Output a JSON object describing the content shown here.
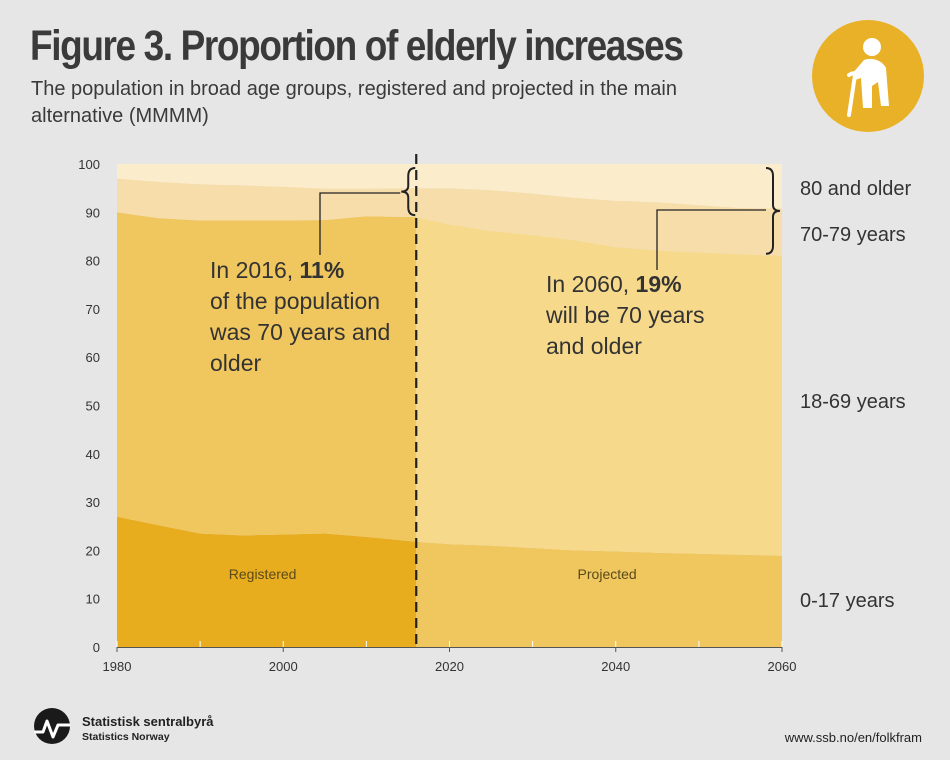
{
  "header": {
    "title": "Figure 3. Proportion of elderly increases",
    "subtitle": "The population in broad age groups, registered and projected in the main alternative (MMMM)"
  },
  "colors": {
    "age_80_plus": "#fbedcb",
    "age_70_79": "#f7ddaa",
    "age_18_69_registered": "#f0c65e",
    "age_0_17_registered": "#e8ad1f",
    "age_18_69_projected": "#f6d98b",
    "age_0_17_projected": "#f0c65e",
    "badge": "#e9b127"
  },
  "icons": {
    "badge": "elderly-person-icon",
    "logo": "ssb-logo-icon"
  },
  "chart_data": {
    "type": "area",
    "stacked": true,
    "x": [
      1980,
      1985,
      1990,
      1995,
      2000,
      2005,
      2010,
      2016,
      2020,
      2025,
      2030,
      2035,
      2040,
      2045,
      2050,
      2055,
      2060
    ],
    "split_year": 2016,
    "series": [
      {
        "name": "0-17 years",
        "values": [
          27,
          25.2,
          23.5,
          23.1,
          23.3,
          23.5,
          22.8,
          21.8,
          21.3,
          21.0,
          20.5,
          20.0,
          19.8,
          19.5,
          19.3,
          19.1,
          18.9
        ]
      },
      {
        "name": "18-69 years",
        "values": [
          63,
          63.6,
          64.8,
          65.2,
          65.0,
          64.9,
          66.4,
          67.2,
          66.2,
          65.1,
          64.8,
          64.2,
          63.0,
          62.6,
          62.4,
          62.2,
          62.1
        ]
      },
      {
        "name": "70-79 years",
        "values": [
          7,
          7.5,
          7.5,
          7.3,
          7.0,
          6.5,
          5.7,
          6.0,
          7.5,
          8.5,
          8.6,
          8.8,
          9.6,
          10.0,
          9.8,
          9.6,
          9.8
        ]
      },
      {
        "name": "80 and older",
        "values": [
          3,
          3.7,
          4.2,
          4.4,
          4.7,
          5.1,
          5.1,
          5.0,
          5.0,
          5.4,
          6.1,
          7.0,
          7.6,
          7.9,
          8.5,
          9.1,
          9.2
        ]
      }
    ],
    "xlim": [
      1980,
      2060
    ],
    "ylim": [
      0,
      100
    ],
    "xticks": [
      1980,
      2000,
      2020,
      2040,
      2060
    ],
    "yticks": [
      0,
      10,
      20,
      30,
      40,
      50,
      60,
      70,
      80,
      90,
      100
    ],
    "xlabel": "",
    "ylabel": "",
    "legend_position": "right",
    "labels": [
      {
        "text": "80 and older",
        "series": "80 and older"
      },
      {
        "text": "70-79 years",
        "series": "70-79 years"
      },
      {
        "text": "18-69 years",
        "series": "18-69 years"
      },
      {
        "text": "0-17 years",
        "series": "0-17 years"
      }
    ],
    "section_labels": {
      "registered": "Registered",
      "projected": "Projected"
    },
    "annotations": [
      {
        "id": "2016",
        "lines": [
          [
            {
              "t": "In 2016, ",
              "b": false
            },
            {
              "t": "11%",
              "b": true
            }
          ],
          [
            {
              "t": "of the population",
              "b": false
            }
          ],
          [
            {
              "t": "was 70 years and",
              "b": false
            }
          ],
          [
            {
              "t": "older",
              "b": false
            }
          ]
        ]
      },
      {
        "id": "2060",
        "lines": [
          [
            {
              "t": "In 2060, ",
              "b": false
            },
            {
              "t": "19%",
              "b": true
            }
          ],
          [
            {
              "t": "will be 70 years",
              "b": false
            }
          ],
          [
            {
              "t": "and older",
              "b": false
            }
          ]
        ]
      }
    ]
  },
  "footer": {
    "logo_name": "Statistisk sentralbyrå",
    "logo_subtitle": "Statistics Norway",
    "url": "www.ssb.no/en/folkfram"
  }
}
